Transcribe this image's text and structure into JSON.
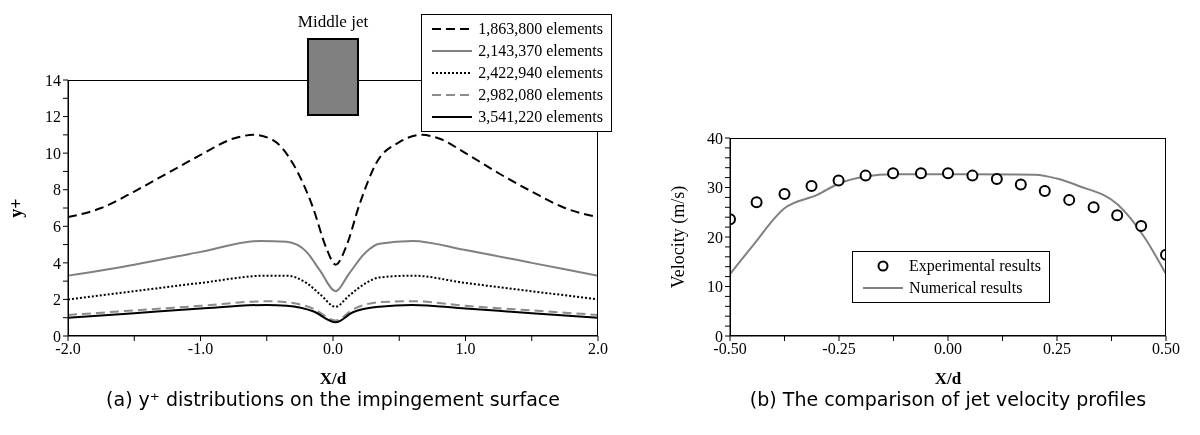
{
  "chart_data": [
    {
      "type": "line",
      "title": "(a) y⁺ distributions on the impingement surface",
      "xlabel": "X/d",
      "ylabel": "y+",
      "annotations": [
        "Middle jet"
      ],
      "legend": "top right",
      "xlim": [
        -2,
        2
      ],
      "xticks": [
        {
          "value": -2,
          "label": "-2.0"
        },
        {
          "value": -1.5,
          "label": null
        },
        {
          "value": -1,
          "label": "-1.0"
        },
        {
          "value": -0.5,
          "label": null
        },
        {
          "value": 0,
          "label": "0.0"
        },
        {
          "value": 0.5,
          "label": null
        },
        {
          "value": 1,
          "label": "1.0"
        },
        {
          "value": 1.5,
          "label": null
        },
        {
          "value": 2,
          "label": "2.0"
        }
      ],
      "ylim": [
        0,
        14
      ],
      "yticks": [
        0,
        {
          "value": 1,
          "label": null
        },
        2,
        {
          "value": 3,
          "label": null
        },
        4,
        {
          "value": 5,
          "label": null
        },
        6,
        {
          "value": 7,
          "label": null
        },
        8,
        {
          "value": 9,
          "label": null
        },
        10,
        {
          "value": 11,
          "label": null
        },
        12,
        {
          "value": 13,
          "label": null
        },
        14
      ],
      "series": [
        {
          "name": "1,863,800 elements",
          "color": "#000000",
          "line_style": "dashed",
          "x": [
            -2,
            -1.75,
            -1.5,
            -1.25,
            -1,
            -0.75,
            -0.6,
            -0.45,
            -0.3,
            -0.15,
            -0.05,
            0.02,
            0.1,
            0.2,
            0.33,
            0.5,
            0.67,
            0.8,
            1,
            1.25,
            1.5,
            1.75,
            2
          ],
          "values": [
            6.5,
            7.0,
            7.9,
            8.9,
            9.9,
            10.8,
            11.0,
            10.7,
            9.4,
            7.0,
            4.8,
            3.9,
            4.9,
            7.2,
            9.5,
            10.6,
            11.0,
            10.8,
            10.0,
            8.9,
            7.9,
            7.0,
            6.5
          ]
        },
        {
          "name": "2,143,370 elements",
          "color": "#808080",
          "line_style": "solid",
          "x": [
            -2,
            -1.5,
            -1,
            -0.55,
            -0.35,
            -0.2,
            -0.1,
            0.02,
            0.12,
            0.25,
            0.35,
            0.6,
            1,
            1.5,
            2
          ],
          "values": [
            3.3,
            3.9,
            4.6,
            5.2,
            5.15,
            4.6,
            3.6,
            2.45,
            3.4,
            4.6,
            5.05,
            5.2,
            4.7,
            4.0,
            3.3
          ]
        },
        {
          "name": "2,422,940 elements",
          "color": "#000000",
          "line_style": "dotted",
          "x": [
            -2,
            -1.5,
            -1,
            -0.5,
            -0.35,
            -0.2,
            -0.1,
            0.02,
            0.12,
            0.25,
            0.35,
            0.6,
            1,
            1.5,
            2
          ],
          "values": [
            2.0,
            2.45,
            2.9,
            3.3,
            3.3,
            2.9,
            2.3,
            1.6,
            2.2,
            2.9,
            3.2,
            3.3,
            2.9,
            2.45,
            2.0
          ]
        },
        {
          "name": "2,982,080 elements",
          "color": "#8c8c8c",
          "line_style": "dashed",
          "x": [
            -2,
            -1.5,
            -1,
            -0.5,
            -0.35,
            -0.15,
            0.02,
            0.15,
            0.35,
            0.6,
            1,
            1.5,
            2
          ],
          "values": [
            1.15,
            1.4,
            1.65,
            1.9,
            1.85,
            1.5,
            0.85,
            1.45,
            1.85,
            1.9,
            1.65,
            1.4,
            1.15
          ]
        },
        {
          "name": "3,541,220 elements",
          "color": "#000000",
          "line_style": "solid",
          "x": [
            -2,
            -1.5,
            -1,
            -0.5,
            -0.35,
            -0.15,
            0.02,
            0.15,
            0.35,
            0.6,
            1,
            1.5,
            2
          ],
          "values": [
            1.0,
            1.25,
            1.5,
            1.7,
            1.65,
            1.35,
            0.75,
            1.3,
            1.6,
            1.7,
            1.5,
            1.25,
            1.0
          ]
        }
      ]
    },
    {
      "type": "line",
      "title": "(b) The comparison of jet velocity profiles",
      "xlabel": "X/d",
      "ylabel": "Velocity (m/s)",
      "legend": "bottom",
      "xlim": [
        -0.5,
        0.5
      ],
      "xticks": [
        {
          "value": -0.5,
          "label": "-0.50"
        },
        {
          "value": -0.375,
          "label": null
        },
        {
          "value": -0.25,
          "label": "-0.25"
        },
        {
          "value": -0.125,
          "label": null
        },
        {
          "value": 0,
          "label": "0.00"
        },
        {
          "value": 0.125,
          "label": null
        },
        {
          "value": 0.25,
          "label": "0.25"
        },
        {
          "value": 0.375,
          "label": null
        },
        {
          "value": 0.5,
          "label": "0.50"
        }
      ],
      "ylim": [
        0,
        40
      ],
      "yticks": [
        0,
        {
          "value": 2,
          "label": null
        },
        {
          "value": 4,
          "label": null
        },
        {
          "value": 6,
          "label": null
        },
        {
          "value": 8,
          "label": null
        },
        10,
        {
          "value": 12,
          "label": null
        },
        {
          "value": 14,
          "label": null
        },
        {
          "value": 16,
          "label": null
        },
        {
          "value": 18,
          "label": null
        },
        20,
        {
          "value": 22,
          "label": null
        },
        {
          "value": 24,
          "label": null
        },
        {
          "value": 26,
          "label": null
        },
        {
          "value": 28,
          "label": null
        },
        30,
        {
          "value": 32,
          "label": null
        },
        {
          "value": 34,
          "label": null
        },
        {
          "value": 36,
          "label": null
        },
        {
          "value": 38,
          "label": null
        },
        40
      ],
      "series": [
        {
          "name": "Experimental results",
          "type": "scatter",
          "marker": "circle",
          "color": "#000000",
          "x": [
            -0.5,
            -0.439,
            -0.375,
            -0.313,
            -0.251,
            -0.189,
            -0.126,
            -0.062,
            0,
            0.056,
            0.112,
            0.167,
            0.222,
            0.278,
            0.334,
            0.388,
            0.443,
            0.5
          ],
          "values": [
            23.6,
            27.0,
            28.7,
            30.3,
            31.4,
            32.4,
            32.9,
            32.9,
            32.9,
            32.4,
            31.7,
            30.6,
            29.3,
            27.5,
            26.0,
            24.4,
            22.2,
            16.4
          ]
        },
        {
          "name": "Numerical results",
          "type": "line",
          "color": "#808080",
          "line_style": "solid",
          "x": [
            -0.5,
            -0.45,
            -0.375,
            -0.3,
            -0.25,
            -0.19,
            -0.125,
            0,
            0.2,
            0.25,
            0.3,
            0.39,
            0.45,
            0.5
          ],
          "values": [
            12.5,
            18,
            25.8,
            28.5,
            30.8,
            32.2,
            32.7,
            32.7,
            32.6,
            31.8,
            30.3,
            26.5,
            20,
            12.5
          ]
        }
      ]
    }
  ]
}
